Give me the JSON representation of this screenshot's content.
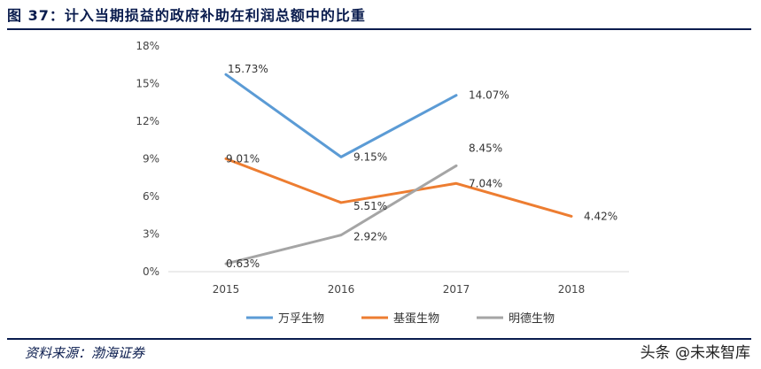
{
  "figure": {
    "title": "图 37：计入当期损益的政府补助在利润总额中的比重",
    "source": "资料来源：渤海证券",
    "watermark": "头条 @未来智库"
  },
  "chart_data": {
    "type": "line",
    "title": "图 37：计入当期损益的政府补助在利润总额中的比重",
    "x": [
      "2015",
      "2016",
      "2017",
      "2018"
    ],
    "ylabel": "",
    "xlabel": "",
    "ylim": [
      0,
      18
    ],
    "yticks": [
      "0%",
      "3%",
      "6%",
      "9%",
      "12%",
      "15%",
      "18%"
    ],
    "grid": false,
    "legend_position": "bottom",
    "series": [
      {
        "name": "万孚生物",
        "color": "#5b9bd5",
        "values": [
          15.73,
          9.15,
          14.07,
          null
        ],
        "labels": [
          "15.73%",
          "9.15%",
          "14.07%",
          ""
        ]
      },
      {
        "name": "基蛋生物",
        "color": "#ed7d31",
        "values": [
          9.01,
          5.51,
          7.04,
          4.42
        ],
        "labels": [
          "9.01%",
          "5.51%",
          "7.04%",
          "4.42%"
        ]
      },
      {
        "name": "明德生物",
        "color": "#a5a5a5",
        "values": [
          0.63,
          2.92,
          8.45,
          null
        ],
        "labels": [
          "0.63%",
          "2.92%",
          "8.45%",
          ""
        ]
      }
    ]
  }
}
